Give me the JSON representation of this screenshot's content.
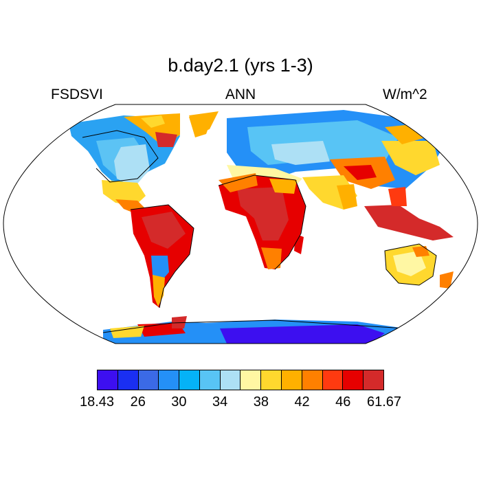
{
  "title": "b.day2.1 (yrs 1-3)",
  "left_label": "FSDSVI",
  "center_label": "ANN",
  "right_label": "W/m^2",
  "colorbar": {
    "colors": [
      "#3d0ff0",
      "#1a2ff2",
      "#3b6ae6",
      "#2490f7",
      "#05b2f7",
      "#58c4f5",
      "#ade0f5",
      "#fff7a3",
      "#ffd82e",
      "#ffb000",
      "#ff8000",
      "#ff3a10",
      "#e60000",
      "#d42a2a"
    ],
    "labels": [
      "18.43",
      "26",
      "30",
      "34",
      "38",
      "42",
      "46",
      "61.67"
    ]
  }
}
